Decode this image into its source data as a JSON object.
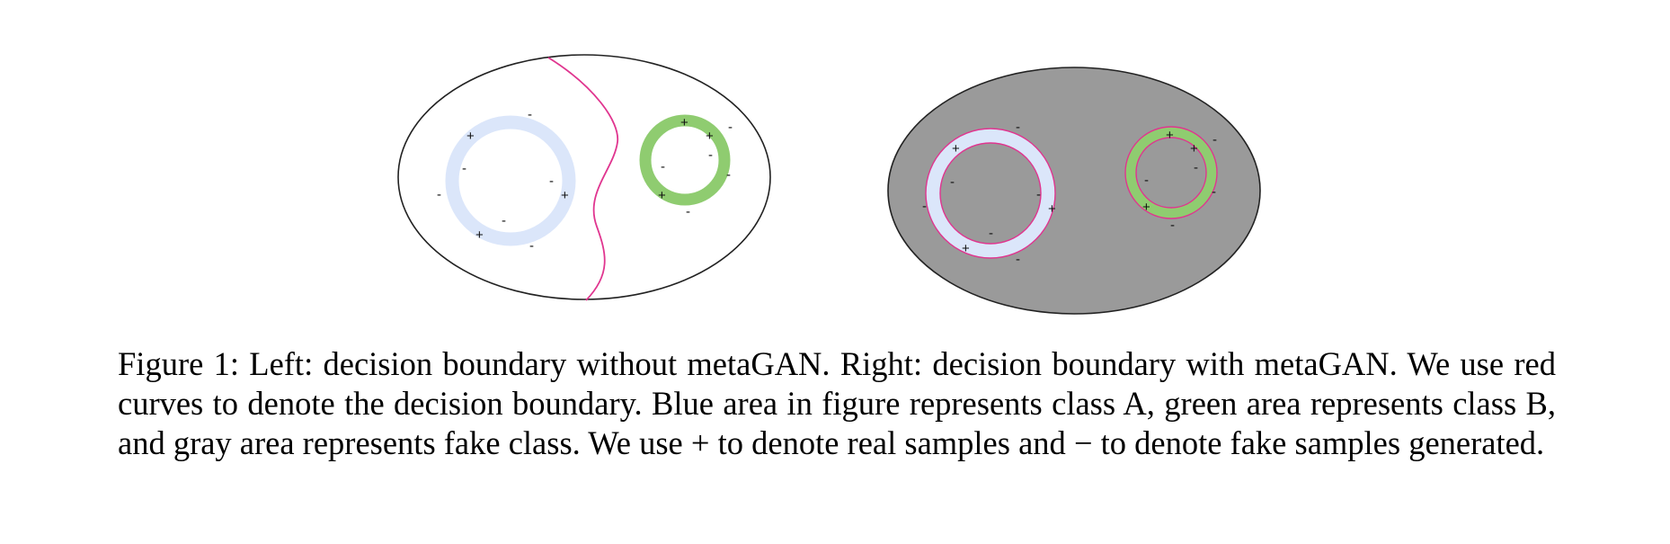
{
  "colors": {
    "blue_area": "#dbe6fa",
    "green_area": "#8fcc70",
    "gray_area": "#9a9a9a",
    "boundary": "#e0358f",
    "outline": "#222222",
    "background": "#ffffff"
  },
  "panels": [
    {
      "id": "left",
      "background_area": "white",
      "symbols": [
        "+",
        "+",
        "+",
        "+",
        "+",
        "+",
        "-",
        "-",
        "-",
        "-",
        "-",
        "-",
        "-",
        "-",
        "-",
        "-",
        "-",
        "-",
        "-"
      ]
    },
    {
      "id": "right",
      "background_area": "gray",
      "symbols": [
        "+",
        "+",
        "+",
        "+",
        "+",
        "+",
        "-",
        "-",
        "-",
        "-",
        "-",
        "-",
        "-",
        "-",
        "-",
        "-",
        "-",
        "-",
        "-"
      ]
    }
  ],
  "caption": {
    "part1": "Figure 1: Left: decision boundary without metaGAN. Right: decision boundary with metaGAN. We use red curves to denote the decision boundary. Blue area in figure represents class A, green area represents class B, and gray area represents fake class. We use ",
    "plus": "+",
    "part2": " to denote real samples and ",
    "minus": "−",
    "part3": " to denote fake samples generated."
  }
}
